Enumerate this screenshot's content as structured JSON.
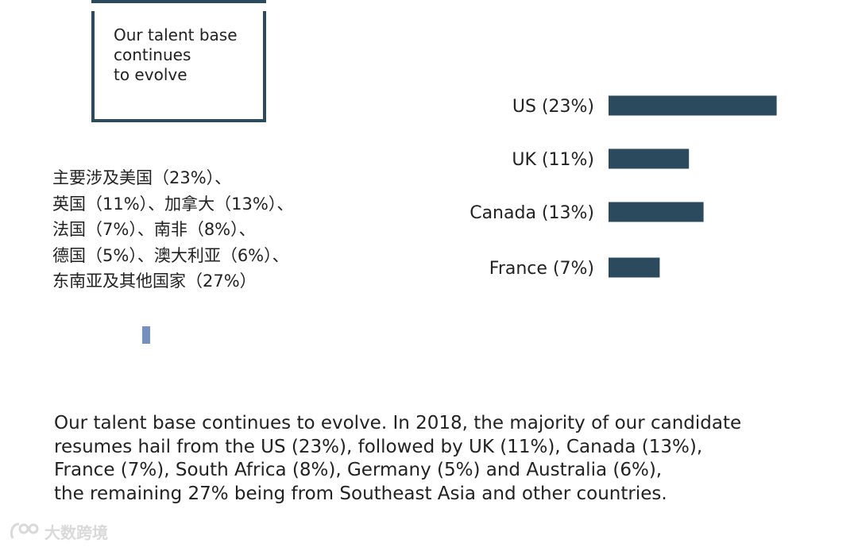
{
  "callout": {
    "text": "Our talent base\ncontinues\nto evolve"
  },
  "zh_lines": [
    "主要涉及美国（23%）、",
    "英国（11%）、加拿大（13%）、",
    "法国（7%）、南非（8%）、",
    "德国（5%）、澳大利亚（6%）、",
    "东南亚及其他国家（27%）"
  ],
  "summary_lines": [
    "Our talent base continues to evolve. In 2018, the majority of our candidate",
    "resumes hail from the US (23%), followed by UK (11%), Canada (13%),",
    "France (7%), South Africa (8%), Germany (5%) and Australia (6%),",
    "the remaining 27% being from Southeast Asia and other countries."
  ],
  "watermark": {
    "text": "大数跨境",
    "icon": "brand-logo-icon"
  },
  "colors": {
    "bar": "#2c4a5e",
    "frame": "#2c4a5e",
    "marker": "#7591c1",
    "text": "#222222"
  },
  "chart_data": {
    "type": "bar",
    "orientation": "horizontal",
    "categories": [
      "US (23%)",
      "UK (11%)",
      "Canada (13%)",
      "France (7%)"
    ],
    "values": [
      23,
      11,
      13,
      7
    ],
    "title": "",
    "xlabel": "",
    "ylabel": "",
    "grid": false,
    "legend": "none"
  }
}
